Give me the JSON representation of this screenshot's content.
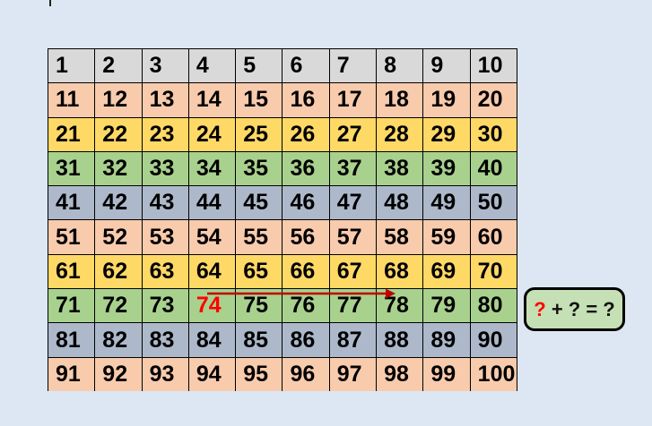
{
  "colors": {
    "page_background": "#dde7f3",
    "grid_border": "#000000",
    "highlight_red": "#ff0000",
    "arrow_red": "#c00000",
    "equation_box_background": "#c5e0b4",
    "equation_box_border": "#000000",
    "row_gray": "#d9d9d9",
    "row_peach": "#f8cbad",
    "row_yellow": "#ffd966",
    "row_green": "#a9d18e",
    "row_bluegray": "#adb9ca"
  },
  "grid": {
    "rows": [
      {
        "color": "#d9d9d9",
        "values": [
          1,
          2,
          3,
          4,
          5,
          6,
          7,
          8,
          9,
          10
        ]
      },
      {
        "color": "#f8cbad",
        "values": [
          11,
          12,
          13,
          14,
          15,
          16,
          17,
          18,
          19,
          20
        ]
      },
      {
        "color": "#ffd966",
        "values": [
          21,
          22,
          23,
          24,
          25,
          26,
          27,
          28,
          29,
          30
        ]
      },
      {
        "color": "#a9d18e",
        "values": [
          31,
          32,
          33,
          34,
          35,
          36,
          37,
          38,
          39,
          40
        ]
      },
      {
        "color": "#adb9ca",
        "values": [
          41,
          42,
          43,
          44,
          45,
          46,
          47,
          48,
          49,
          50
        ]
      },
      {
        "color": "#f8cbad",
        "values": [
          51,
          52,
          53,
          54,
          55,
          56,
          57,
          58,
          59,
          60
        ]
      },
      {
        "color": "#ffd966",
        "values": [
          61,
          62,
          63,
          64,
          65,
          66,
          67,
          68,
          69,
          70
        ]
      },
      {
        "color": "#a9d18e",
        "values": [
          71,
          72,
          73,
          74,
          75,
          76,
          77,
          78,
          79,
          80
        ]
      },
      {
        "color": "#adb9ca",
        "values": [
          81,
          82,
          83,
          84,
          85,
          86,
          87,
          88,
          89,
          90
        ]
      },
      {
        "color": "#f8cbad",
        "values": [
          91,
          92,
          93,
          94,
          95,
          96,
          97,
          98,
          99,
          100
        ]
      }
    ],
    "highlighted_cell": {
      "value": 74,
      "text_color": "#ff0000"
    }
  },
  "arrow": {
    "from_value": 74,
    "to_value": 78,
    "color": "#c00000"
  },
  "equation_box": {
    "red_part": "?",
    "rest_part": " + ? = ?"
  }
}
